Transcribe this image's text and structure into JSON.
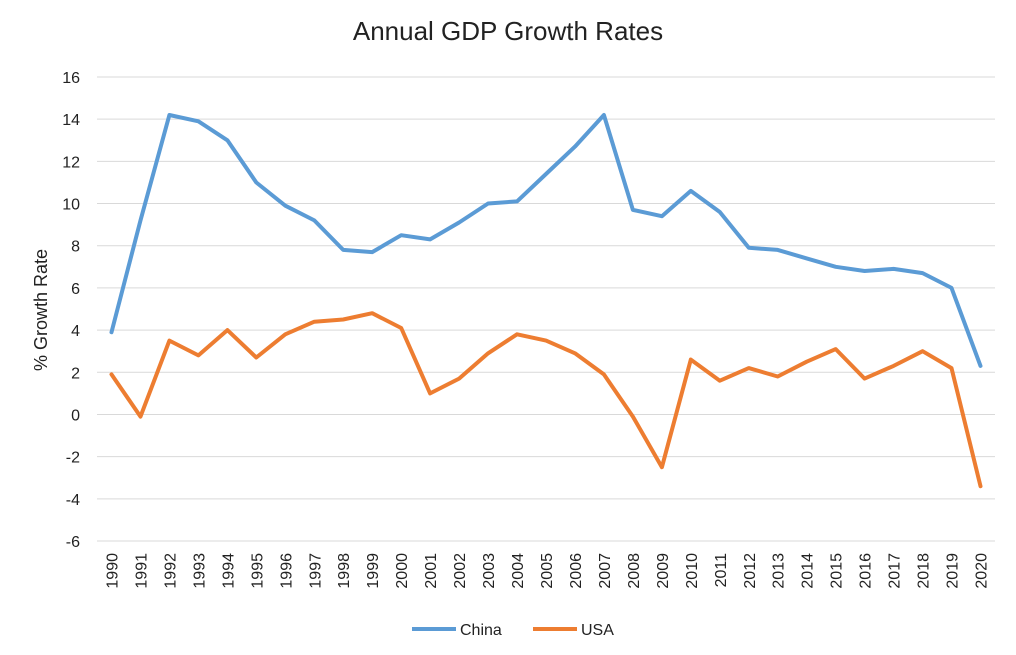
{
  "chart_data": {
    "type": "line",
    "title": "Annual GDP Growth Rates",
    "xlabel": "",
    "ylabel": "% Growth Rate",
    "ylim": [
      -6,
      16
    ],
    "yticks": [
      -6,
      -4,
      -2,
      0,
      2,
      4,
      6,
      8,
      10,
      12,
      14,
      16
    ],
    "grid": true,
    "legend_position": "bottom",
    "categories": [
      "1990",
      "1991",
      "1992",
      "1993",
      "1994",
      "1995",
      "1996",
      "1997",
      "1998",
      "1999",
      "2000",
      "2001",
      "2002",
      "2003",
      "2004",
      "2005",
      "2006",
      "2007",
      "2008",
      "2009",
      "2010",
      "2011",
      "2012",
      "2013",
      "2014",
      "2015",
      "2016",
      "2017",
      "2018",
      "2019",
      "2020"
    ],
    "series": [
      {
        "name": "China",
        "color": "#5b9bd5",
        "values": [
          3.9,
          9.2,
          14.2,
          13.9,
          13.0,
          11.0,
          9.9,
          9.2,
          7.8,
          7.7,
          8.5,
          8.3,
          9.1,
          10.0,
          10.1,
          11.4,
          12.7,
          14.2,
          9.7,
          9.4,
          10.6,
          9.6,
          7.9,
          7.8,
          7.4,
          7.0,
          6.8,
          6.9,
          6.7,
          6.0,
          2.3
        ]
      },
      {
        "name": "USA",
        "color": "#ed7d31",
        "values": [
          1.9,
          -0.1,
          3.5,
          2.8,
          4.0,
          2.7,
          3.8,
          4.4,
          4.5,
          4.8,
          4.1,
          1.0,
          1.7,
          2.9,
          3.8,
          3.5,
          2.9,
          1.9,
          -0.1,
          -2.5,
          2.6,
          1.6,
          2.2,
          1.8,
          2.5,
          3.1,
          1.7,
          2.3,
          3.0,
          2.2,
          -3.4
        ]
      }
    ]
  }
}
